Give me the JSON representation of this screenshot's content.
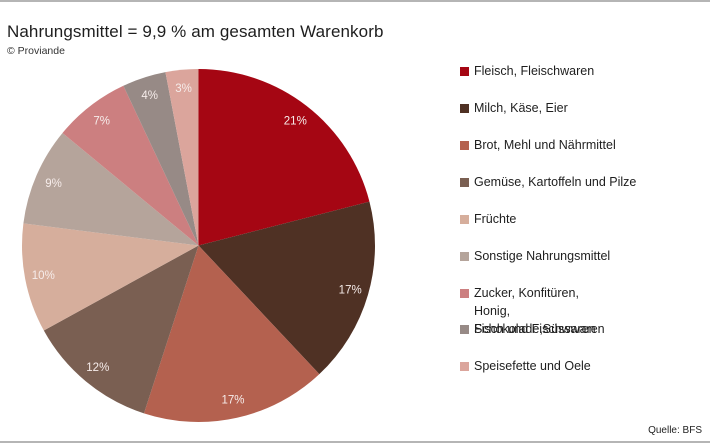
{
  "title": "Nahrungsmittel = 9,9 % am gesamten Warenkorb",
  "credit": "© Proviande",
  "source": "Quelle: BFS",
  "chart_data": {
    "type": "pie",
    "title": "Nahrungsmittel = 9,9 % am gesamten Warenkorb",
    "subtitle": "© Proviande",
    "annotation": "Quelle: BFS",
    "start_angle": "12 o'clock, clockwise",
    "legend_position": "right",
    "categories": [
      "Fleisch, Fleischwaren",
      "Milch, Käse, Eier",
      "Brot, Mehl und Nährmittel",
      "Gemüse, Kartoffeln und Pilze",
      "Früchte",
      "Sonstige Nahrungsmittel",
      "Zucker, Konfitüren, Honig, Schokolade,Süsswaren",
      "Fisch und Fischwaren",
      "Speisefette und Oele"
    ],
    "values": [
      21,
      17,
      17,
      12,
      10,
      9,
      7,
      4,
      3
    ],
    "labels": [
      "21%",
      "17%",
      "17%",
      "12%",
      "10%",
      "9%",
      "7%",
      "4%",
      "3%"
    ],
    "colors": [
      "#a50613",
      "#4f3124",
      "#b4614f",
      "#7a5f52",
      "#d6ae9c",
      "#b5a49b",
      "#cc7f80",
      "#978a86",
      "#dba59c"
    ]
  },
  "legend": [
    {
      "label": "Fleisch, Fleischwaren",
      "color": "#a50613"
    },
    {
      "label": "Milch, Käse, Eier",
      "color": "#4f3124"
    },
    {
      "label": "Brot, Mehl und Nährmittel",
      "color": "#b4614f"
    },
    {
      "label": "Gemüse, Kartoffeln und Pilze",
      "color": "#7a5f52"
    },
    {
      "label": "Früchte",
      "color": "#d6ae9c"
    },
    {
      "label": "Sonstige Nahrungsmittel",
      "color": "#b5a49b"
    },
    {
      "label": "Zucker, Konfitüren, Honig,\nSchokolade,Süsswaren",
      "color": "#cc7f80"
    },
    {
      "label": "Fisch und Fischwaren",
      "color": "#978a86"
    },
    {
      "label": "Speisefette und Oele",
      "color": "#dba59c"
    }
  ]
}
